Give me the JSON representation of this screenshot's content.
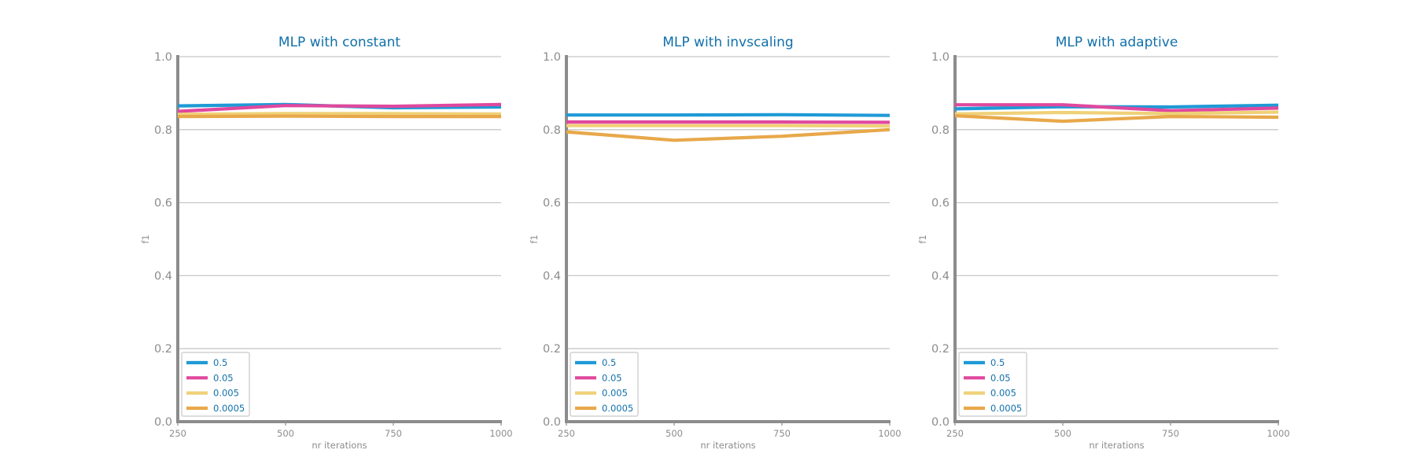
{
  "chart_data": [
    {
      "type": "line",
      "title": "MLP with constant",
      "xlabel": "nr iterations",
      "ylabel": "f1",
      "x": [
        250,
        500,
        750,
        1000
      ],
      "xticks": [
        "250",
        "500",
        "750",
        "1000"
      ],
      "yticks": [
        "0.0",
        "0.2",
        "0.4",
        "0.6",
        "0.8",
        "1.0"
      ],
      "xlim": [
        250,
        1000
      ],
      "ylim": [
        0,
        1
      ],
      "grid": "horizontal",
      "legend_position": "bottom-left",
      "series": [
        {
          "name": "0.5",
          "color": "#1f9ad6",
          "values": [
            0.865,
            0.869,
            0.86,
            0.862
          ]
        },
        {
          "name": "0.05",
          "color": "#e0489e",
          "values": [
            0.85,
            0.866,
            0.864,
            0.869
          ]
        },
        {
          "name": "0.005",
          "color": "#efd178",
          "values": [
            0.842,
            0.844,
            0.844,
            0.843
          ]
        },
        {
          "name": "0.0005",
          "color": "#e8a84a",
          "values": [
            0.836,
            0.837,
            0.836,
            0.836
          ]
        }
      ]
    },
    {
      "type": "line",
      "title": "MLP with invscaling",
      "xlabel": "nr iterations",
      "ylabel": "f1",
      "x": [
        250,
        500,
        750,
        1000
      ],
      "xticks": [
        "250",
        "500",
        "750",
        "1000"
      ],
      "yticks": [
        "0.0",
        "0.2",
        "0.4",
        "0.6",
        "0.8",
        "1.0"
      ],
      "xlim": [
        250,
        1000
      ],
      "ylim": [
        0,
        1
      ],
      "grid": "horizontal",
      "legend_position": "bottom-left",
      "series": [
        {
          "name": "0.5",
          "color": "#1f9ad6",
          "values": [
            0.84,
            0.84,
            0.841,
            0.839
          ]
        },
        {
          "name": "0.05",
          "color": "#e0489e",
          "values": [
            0.821,
            0.821,
            0.821,
            0.82
          ]
        },
        {
          "name": "0.005",
          "color": "#efd178",
          "values": [
            0.811,
            0.811,
            0.811,
            0.81
          ]
        },
        {
          "name": "0.0005",
          "color": "#e8a84a",
          "values": [
            0.794,
            0.771,
            0.782,
            0.8
          ]
        }
      ]
    },
    {
      "type": "line",
      "title": "MLP with adaptive",
      "xlabel": "nr iterations",
      "ylabel": "f1",
      "x": [
        250,
        500,
        750,
        1000
      ],
      "xticks": [
        "250",
        "500",
        "750",
        "1000"
      ],
      "yticks": [
        "0.0",
        "0.2",
        "0.4",
        "0.6",
        "0.8",
        "1.0"
      ],
      "xlim": [
        250,
        1000
      ],
      "ylim": [
        0,
        1
      ],
      "grid": "horizontal",
      "legend_position": "bottom-left",
      "series": [
        {
          "name": "0.5",
          "color": "#1f9ad6",
          "values": [
            0.857,
            0.863,
            0.862,
            0.867
          ]
        },
        {
          "name": "0.05",
          "color": "#e0489e",
          "values": [
            0.868,
            0.868,
            0.852,
            0.859
          ]
        },
        {
          "name": "0.005",
          "color": "#efd178",
          "values": [
            0.843,
            0.847,
            0.844,
            0.848
          ]
        },
        {
          "name": "0.0005",
          "color": "#e8a84a",
          "values": [
            0.838,
            0.823,
            0.836,
            0.834
          ]
        }
      ]
    }
  ]
}
